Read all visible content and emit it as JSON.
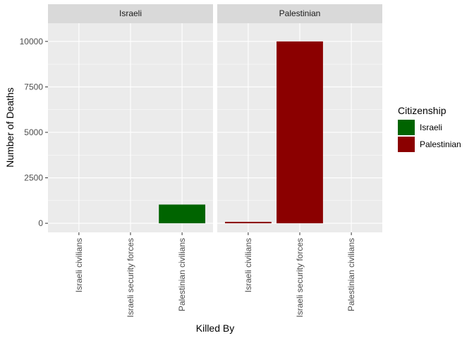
{
  "chart_data": {
    "type": "bar",
    "facet_by": "Citizenship",
    "categories": [
      "Israeli civilians",
      "Israeli security forces",
      "Palestinian civilians"
    ],
    "facets": [
      {
        "name": "Israeli",
        "values": [
          0,
          0,
          1030
        ]
      },
      {
        "name": "Palestinian",
        "values": [
          80,
          10000,
          0
        ]
      }
    ],
    "xlabel": "Killed By",
    "ylabel": "Number of Deaths",
    "ylim": [
      -500,
      11000
    ],
    "yticks": [
      0,
      2500,
      5000,
      7500,
      10000
    ],
    "grid": true,
    "legend": {
      "title": "Citizenship",
      "placement": "right",
      "entries": [
        {
          "name": "Israeli",
          "color": "#006400"
        },
        {
          "name": "Palestinian",
          "color": "#8b0000"
        }
      ]
    },
    "colors": {
      "panel_background": "#ebebeb",
      "strip_background": "#d9d9d9",
      "grid_major": "#ffffff"
    }
  }
}
